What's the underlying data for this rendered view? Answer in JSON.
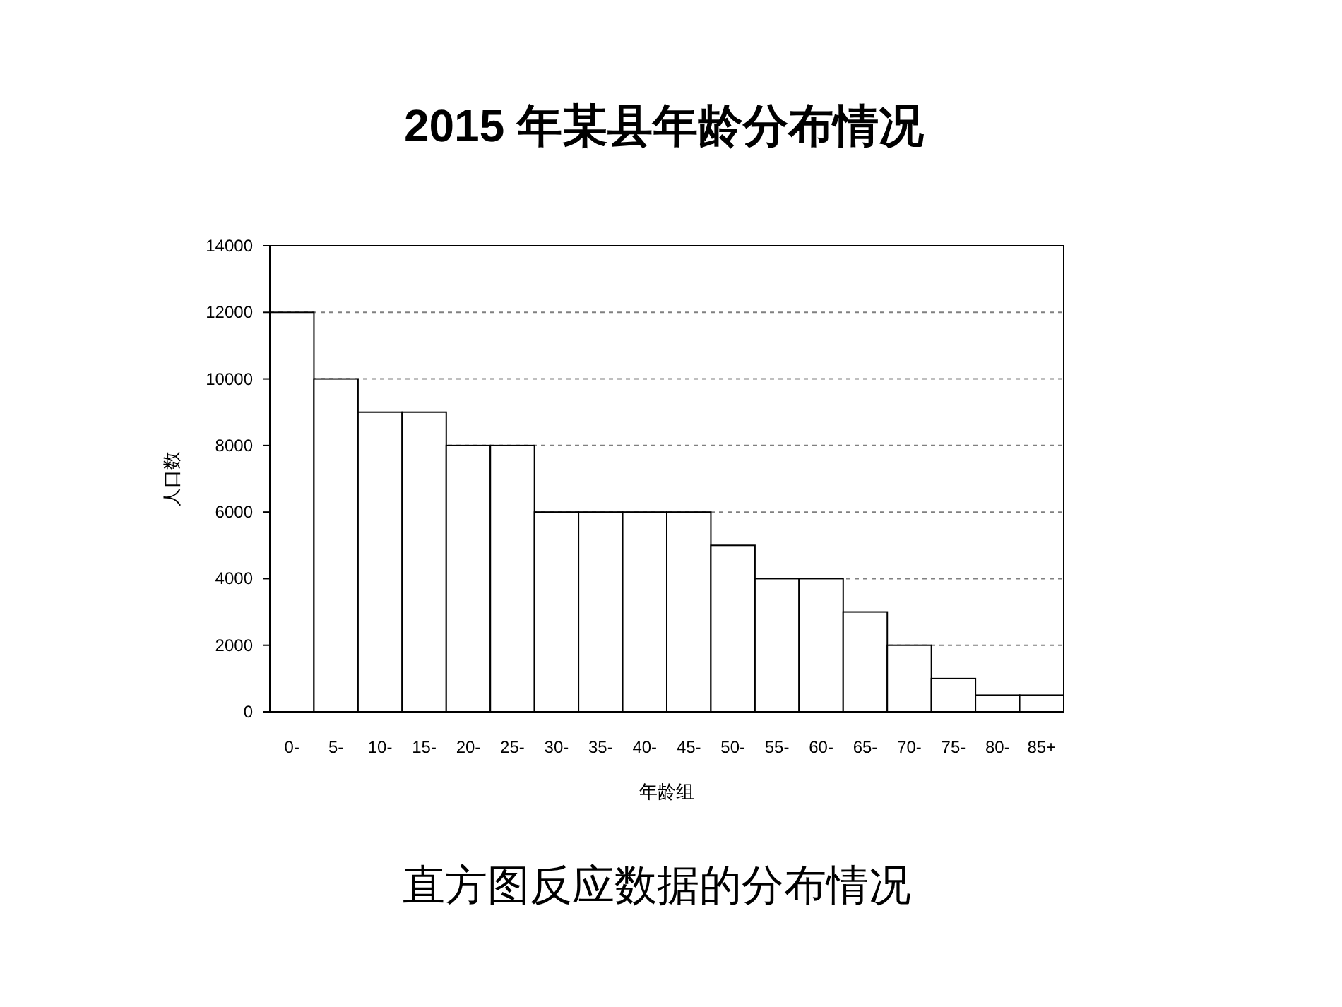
{
  "chart_data": {
    "type": "bar",
    "title": "2015 年某县年龄分布情况",
    "xlabel": "年龄组",
    "ylabel": "人口数",
    "categories": [
      "0-",
      "5-",
      "10-",
      "15-",
      "20-",
      "25-",
      "30-",
      "35-",
      "40-",
      "45-",
      "50-",
      "55-",
      "60-",
      "65-",
      "70-",
      "75-",
      "80-",
      "85+"
    ],
    "values": [
      12000,
      10000,
      9000,
      9000,
      8000,
      8000,
      6000,
      6000,
      6000,
      6000,
      5000,
      4000,
      4000,
      3000,
      2000,
      1000,
      500,
      500
    ],
    "color": "#ffffff",
    "ylim": [
      0,
      14000
    ],
    "yticks": [
      0,
      2000,
      4000,
      6000,
      8000,
      10000,
      12000,
      14000
    ],
    "grid": "y",
    "annotations": [
      "直方图反应数据的分布情况"
    ]
  }
}
